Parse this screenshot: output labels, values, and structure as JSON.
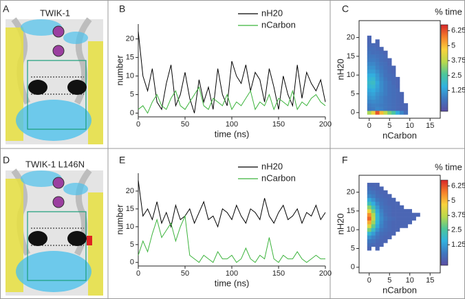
{
  "panel_labels": [
    "A",
    "B",
    "C",
    "D",
    "E",
    "F"
  ],
  "structure_titles": [
    "TWIK-1",
    "TWIK-1 L146N"
  ],
  "chart_data": [
    {
      "type": "line",
      "xlabel": "time (ns)",
      "ylabel": "number",
      "x": [
        0,
        5,
        10,
        15,
        20,
        25,
        30,
        35,
        40,
        45,
        50,
        55,
        60,
        65,
        70,
        75,
        80,
        85,
        90,
        95,
        100,
        105,
        110,
        115,
        120,
        125,
        130,
        135,
        140,
        145,
        150,
        155,
        160,
        165,
        170,
        175,
        180,
        185,
        190,
        195,
        200
      ],
      "xlim": [
        0,
        200
      ],
      "ylim": [
        -1,
        24
      ],
      "xticks": [
        0,
        50,
        100,
        150,
        200
      ],
      "yticks": [
        0,
        5,
        10,
        15,
        20
      ],
      "series": [
        {
          "name": "nH20",
          "color": "#000000",
          "values": [
            22,
            10,
            6,
            12,
            3,
            1,
            8,
            13,
            2,
            5,
            11,
            4,
            0,
            9,
            3,
            7,
            1,
            12,
            5,
            2,
            14,
            10,
            8,
            13,
            6,
            11,
            9,
            3,
            12,
            7,
            1,
            10,
            5,
            2,
            13,
            4,
            11,
            8,
            6,
            9,
            3
          ]
        },
        {
          "name": "nCarbon",
          "color": "#3bb33b",
          "values": [
            1,
            2,
            0,
            3,
            5,
            2,
            1,
            4,
            6,
            2,
            1,
            3,
            5,
            7,
            2,
            1,
            4,
            3,
            2,
            5,
            1,
            3,
            2,
            4,
            6,
            1,
            3,
            2,
            5,
            1,
            4,
            3,
            2,
            6,
            1,
            3,
            2,
            4,
            5,
            3,
            2
          ]
        }
      ]
    },
    {
      "type": "heatmap",
      "xlabel": "nCarbon",
      "ylabel": "nH20",
      "colorbar_label": "% time",
      "x": [
        0,
        1,
        2,
        3,
        4,
        5,
        6,
        7,
        8,
        9
      ],
      "y": [
        0,
        1,
        2,
        3,
        4,
        5,
        6,
        7,
        8,
        9,
        10,
        11,
        12,
        13,
        14,
        15,
        16,
        17,
        18,
        19,
        20
      ],
      "z": [
        [
          3.5,
          4.5,
          6.2,
          5,
          3.8,
          3,
          2.5,
          1.5,
          0.8,
          0.3
        ],
        [
          0.5,
          0.6,
          0.8,
          0.7,
          0.5,
          0.4,
          0.3,
          0.2,
          0.1,
          0.1
        ],
        [
          0.6,
          0.7,
          0.7,
          0.6,
          0.5,
          0.4,
          0.3,
          0.2,
          0.1,
          0.1
        ],
        [
          0.8,
          0.9,
          0.8,
          0.7,
          0.5,
          0.4,
          0.3,
          0.2,
          0.1,
          null
        ],
        [
          1,
          1.1,
          0.9,
          0.7,
          0.5,
          0.4,
          0.3,
          0.2,
          0.1,
          null
        ],
        [
          1.2,
          1.3,
          1,
          0.8,
          0.6,
          0.4,
          0.3,
          0.2,
          0.1,
          null
        ],
        [
          1.4,
          1.5,
          1.2,
          0.9,
          0.6,
          0.4,
          0.3,
          0.2,
          null,
          null
        ],
        [
          1.7,
          1.8,
          1.3,
          0.9,
          0.6,
          0.4,
          0.3,
          0.1,
          null,
          null
        ],
        [
          1.9,
          2,
          1.4,
          0.9,
          0.6,
          0.4,
          0.2,
          0.1,
          null,
          null
        ],
        [
          1.7,
          1.8,
          1.2,
          0.8,
          0.5,
          0.3,
          0.2,
          0.1,
          null,
          null
        ],
        [
          1.5,
          1.5,
          1.1,
          0.7,
          0.4,
          0.3,
          0.2,
          null,
          null,
          null
        ],
        [
          1.2,
          1.2,
          0.9,
          0.6,
          0.4,
          0.2,
          0.1,
          null,
          null,
          null
        ],
        [
          1,
          1,
          0.7,
          0.5,
          0.3,
          0.2,
          0.1,
          null,
          null,
          null
        ],
        [
          0.8,
          0.8,
          0.6,
          0.4,
          0.3,
          0.1,
          null,
          null,
          null,
          null
        ],
        [
          0.6,
          0.6,
          0.5,
          0.3,
          0.2,
          0.1,
          null,
          null,
          null,
          null
        ],
        [
          0.5,
          0.5,
          0.4,
          0.3,
          0.2,
          null,
          null,
          null,
          null,
          null
        ],
        [
          0.4,
          0.3,
          0.3,
          0.2,
          0.1,
          null,
          null,
          null,
          null,
          null
        ],
        [
          0.3,
          0.3,
          0.2,
          0.1,
          null,
          null,
          null,
          null,
          null,
          null
        ],
        [
          0.2,
          0.2,
          0.1,
          null,
          null,
          null,
          null,
          null,
          null,
          null
        ],
        [
          0.1,
          null,
          0.1,
          null,
          null,
          null,
          null,
          null,
          null,
          null
        ],
        [
          0.1,
          null,
          null,
          null,
          null,
          null,
          null,
          null,
          null,
          null
        ]
      ],
      "xlim": [
        -2.5,
        17.5
      ],
      "ylim": [
        -1.5,
        24.5
      ],
      "xticks": [
        0,
        5,
        10,
        15
      ],
      "yticks": [
        0,
        5,
        10,
        15,
        20
      ],
      "clim": [
        -0.5,
        6.75
      ],
      "colorbar_ticks": [
        1.25,
        2.5,
        3.75,
        5,
        6.25
      ],
      "colormap": [
        "#5b4ea3",
        "#3f78c0",
        "#31b2e0",
        "#4dc79a",
        "#b9d94c",
        "#f9d23c",
        "#f5802a",
        "#d7262a"
      ]
    },
    {
      "type": "line",
      "xlabel": "time (ns)",
      "ylabel": "number",
      "x": [
        0,
        5,
        10,
        15,
        20,
        25,
        30,
        35,
        40,
        45,
        50,
        55,
        60,
        65,
        70,
        75,
        80,
        85,
        90,
        95,
        100,
        105,
        110,
        115,
        120,
        125,
        130,
        135,
        140,
        145,
        150,
        155,
        160,
        165,
        170,
        175,
        180,
        185,
        190,
        195,
        200
      ],
      "xlim": [
        0,
        200
      ],
      "ylim": [
        -1,
        25
      ],
      "xticks": [
        0,
        50,
        100,
        150,
        200
      ],
      "yticks": [
        0,
        5,
        10,
        15,
        20
      ],
      "series": [
        {
          "name": "nH20",
          "color": "#000000",
          "values": [
            23,
            13,
            15,
            12,
            17,
            11,
            14,
            10,
            16,
            12,
            13,
            15,
            11,
            14,
            17,
            12,
            13,
            10,
            15,
            14,
            12,
            16,
            13,
            11,
            15,
            14,
            12,
            18,
            13,
            11,
            14,
            16,
            12,
            13,
            15,
            11,
            14,
            13,
            16,
            12,
            14
          ]
        },
        {
          "name": "nCarbon",
          "color": "#3bb33b",
          "values": [
            2,
            6,
            3,
            8,
            12,
            7,
            9,
            11,
            6,
            10,
            13,
            2,
            1,
            0,
            2,
            1,
            0,
            3,
            1,
            1,
            2,
            0,
            1,
            4,
            1,
            0,
            2,
            1,
            7,
            1,
            0,
            2,
            1,
            1,
            3,
            1,
            0,
            1,
            2,
            1,
            1
          ]
        }
      ]
    },
    {
      "type": "heatmap",
      "xlabel": "nCarbon",
      "ylabel": "nH20",
      "colorbar_label": "% time",
      "x": [
        0,
        1,
        2,
        3,
        4,
        5,
        6,
        7,
        8,
        9,
        10,
        11,
        12
      ],
      "y": [
        5,
        6,
        7,
        8,
        9,
        10,
        11,
        12,
        13,
        14,
        15,
        16,
        17,
        18,
        19,
        20,
        21,
        22
      ],
      "z": [
        [
          0.1,
          null,
          0.1,
          null,
          null,
          null,
          null,
          null,
          null,
          null,
          null,
          null,
          null
        ],
        [
          0.3,
          0.2,
          0.1,
          0.1,
          null,
          null,
          null,
          null,
          null,
          null,
          null,
          null,
          null
        ],
        [
          0.5,
          0.4,
          0.2,
          0.1,
          0.1,
          null,
          null,
          null,
          null,
          null,
          null,
          null,
          null
        ],
        [
          1,
          0.7,
          0.4,
          0.2,
          0.1,
          0.1,
          null,
          null,
          null,
          null,
          null,
          null,
          null
        ],
        [
          1.8,
          1.2,
          0.6,
          0.3,
          0.2,
          0.1,
          0.1,
          null,
          null,
          null,
          null,
          null,
          null
        ],
        [
          3,
          2,
          1,
          0.5,
          0.3,
          0.2,
          0.1,
          0.1,
          null,
          null,
          null,
          null,
          null
        ],
        [
          4.2,
          2.8,
          1.4,
          0.7,
          0.4,
          0.2,
          0.1,
          0.1,
          0.1,
          0.1,
          null,
          null,
          null
        ],
        [
          5.2,
          3.4,
          1.7,
          0.8,
          0.4,
          0.2,
          0.1,
          0.1,
          0.1,
          0.1,
          0.1,
          null,
          null
        ],
        [
          6,
          3.8,
          1.8,
          0.9,
          0.5,
          0.3,
          0.2,
          0.1,
          0.1,
          0.1,
          0.1,
          0.1,
          null
        ],
        [
          5.5,
          3.6,
          1.7,
          0.8,
          0.4,
          0.2,
          0.1,
          0.1,
          0.1,
          0.1,
          0.1,
          0.1,
          0.1
        ],
        [
          4.5,
          3,
          1.4,
          0.7,
          0.3,
          0.2,
          0.1,
          0.1,
          0.1,
          0.1,
          0.1,
          null,
          null
        ],
        [
          3.2,
          2.2,
          1.1,
          0.5,
          0.3,
          0.2,
          0.1,
          0.1,
          0.1,
          null,
          null,
          null,
          null
        ],
        [
          2.2,
          1.5,
          0.8,
          0.4,
          0.2,
          0.1,
          0.1,
          0.1,
          null,
          null,
          null,
          null,
          null
        ],
        [
          1.4,
          1,
          0.5,
          0.3,
          0.2,
          0.1,
          0.1,
          null,
          null,
          null,
          null,
          null,
          null
        ],
        [
          0.8,
          0.6,
          0.3,
          0.2,
          0.1,
          0.1,
          null,
          null,
          null,
          null,
          null,
          null,
          null
        ],
        [
          0.5,
          0.4,
          0.2,
          0.1,
          0.1,
          null,
          null,
          null,
          null,
          null,
          null,
          null,
          null
        ],
        [
          0.3,
          0.2,
          0.1,
          0.1,
          null,
          null,
          null,
          null,
          null,
          null,
          null,
          null,
          null
        ],
        [
          0.1,
          0.1,
          0.1,
          null,
          null,
          null,
          null,
          null,
          null,
          null,
          null,
          null,
          null
        ]
      ],
      "xlim": [
        -2.5,
        17.5
      ],
      "ylim": [
        -1.5,
        24.5
      ],
      "xticks": [
        0,
        5,
        10,
        15
      ],
      "yticks": [
        0,
        5,
        10,
        15,
        20
      ],
      "clim": [
        -0.5,
        6.75
      ],
      "colorbar_ticks": [
        1.25,
        2.5,
        3.75,
        5,
        6.25
      ],
      "colormap": [
        "#5b4ea3",
        "#3f78c0",
        "#31b2e0",
        "#4dc79a",
        "#b9d94c",
        "#f9d23c",
        "#f5802a",
        "#d7262a"
      ]
    }
  ]
}
